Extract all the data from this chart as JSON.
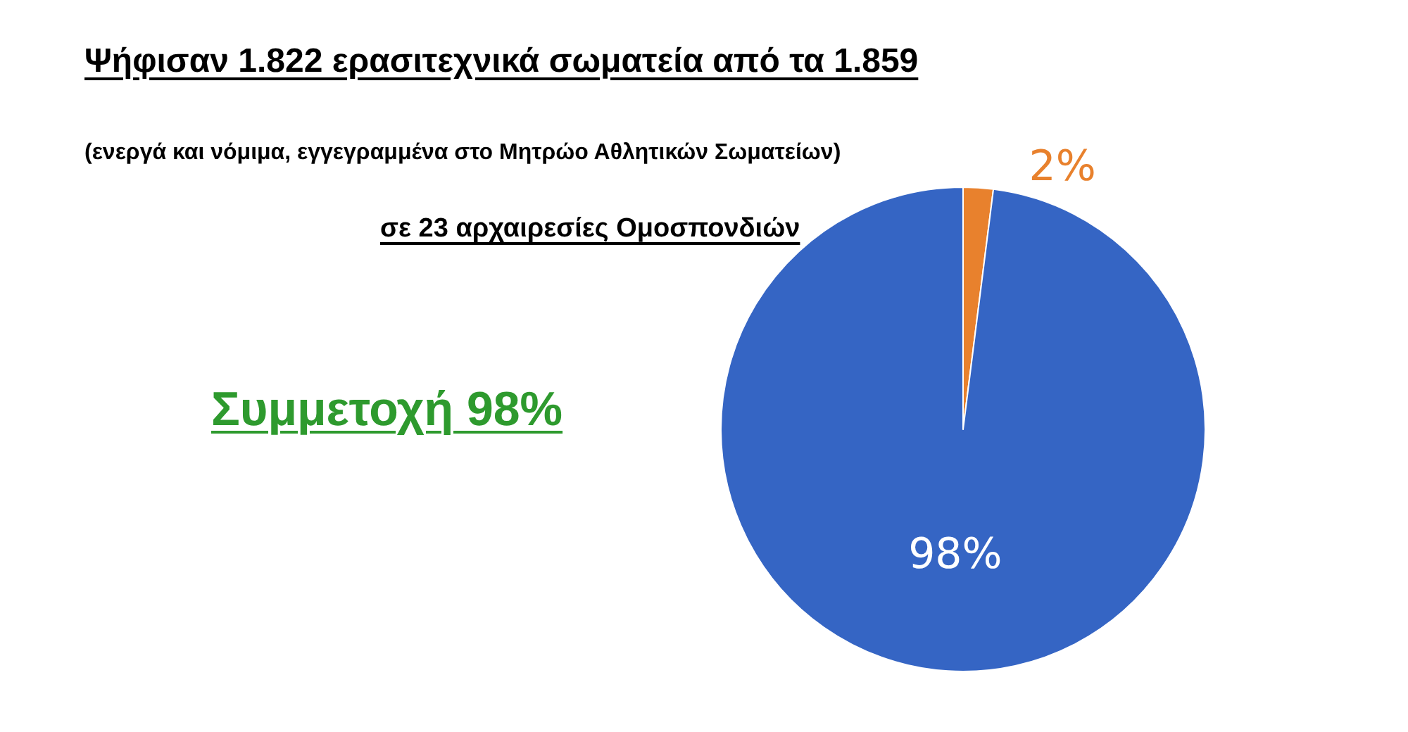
{
  "chart_data": {
    "type": "pie",
    "title": "Ψήφισαν 1.822 ερασιτεχνικά σωματεία από τα 1.859",
    "subtitle": "(ενεργά και νόμιμα, εγγεγραμμένα στο Μητρώο Αθλητικών Σωματείων)",
    "annotations": [
      "σε 23 αρχαιρεσίες Ομοσπονδιών",
      "Συμμετοχή 98%"
    ],
    "categories": [
      null,
      null
    ],
    "values": [
      2,
      98
    ],
    "colors": [
      "#e8812d",
      "#3565c4"
    ],
    "value_labels": [
      "2%",
      "98%"
    ]
  }
}
